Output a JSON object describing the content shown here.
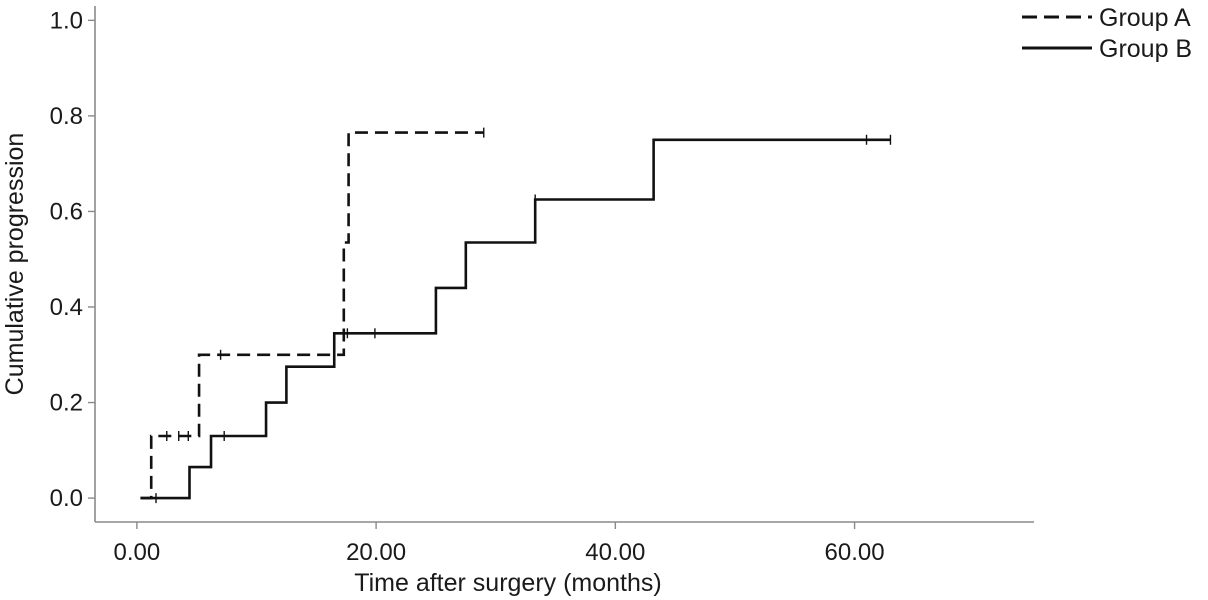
{
  "chart_data": {
    "type": "line",
    "xlabel": "Time after surgery (months)",
    "ylabel": "Cumulative progression",
    "xlim": [
      -3.5,
      75
    ],
    "ylim": [
      -0.05,
      1.03
    ],
    "x_ticks": [
      0,
      20,
      40,
      60
    ],
    "x_tick_labels": [
      "0.00",
      "20.00",
      "40.00",
      "60.00"
    ],
    "y_ticks": [
      0.0,
      0.2,
      0.4,
      0.6,
      0.8,
      1.0
    ],
    "y_tick_labels": [
      "0.0",
      "0.2",
      "0.4",
      "0.6",
      "0.8",
      "1.0"
    ],
    "grid": false,
    "legend_position": "top-right",
    "step": true,
    "series": [
      {
        "name": "Group A",
        "line_style": "dashed",
        "points": [
          {
            "x": 0.3,
            "y": 0.0
          },
          {
            "x": 1.2,
            "y": 0.13
          },
          {
            "x": 5.2,
            "y": 0.3
          },
          {
            "x": 17.3,
            "y": 0.535
          },
          {
            "x": 17.7,
            "y": 0.765
          },
          {
            "x": 29.0,
            "y": 0.765
          }
        ],
        "censored": [
          {
            "x": 1.6,
            "y": 0.0
          },
          {
            "x": 2.5,
            "y": 0.13
          },
          {
            "x": 3.5,
            "y": 0.13
          },
          {
            "x": 4.3,
            "y": 0.13
          },
          {
            "x": 7.0,
            "y": 0.3
          },
          {
            "x": 29.0,
            "y": 0.765
          }
        ]
      },
      {
        "name": "Group B",
        "line_style": "solid",
        "points": [
          {
            "x": 0.3,
            "y": 0.0
          },
          {
            "x": 4.4,
            "y": 0.065
          },
          {
            "x": 6.2,
            "y": 0.13
          },
          {
            "x": 10.8,
            "y": 0.2
          },
          {
            "x": 12.5,
            "y": 0.275
          },
          {
            "x": 16.5,
            "y": 0.345
          },
          {
            "x": 25.0,
            "y": 0.44
          },
          {
            "x": 27.5,
            "y": 0.535
          },
          {
            "x": 33.3,
            "y": 0.625
          },
          {
            "x": 43.2,
            "y": 0.75
          },
          {
            "x": 63.0,
            "y": 0.75
          }
        ],
        "censored": [
          {
            "x": 7.3,
            "y": 0.13
          },
          {
            "x": 17.6,
            "y": 0.345
          },
          {
            "x": 19.9,
            "y": 0.345
          },
          {
            "x": 33.3,
            "y": 0.625
          },
          {
            "x": 61.0,
            "y": 0.75
          },
          {
            "x": 63.0,
            "y": 0.75
          }
        ]
      }
    ]
  }
}
